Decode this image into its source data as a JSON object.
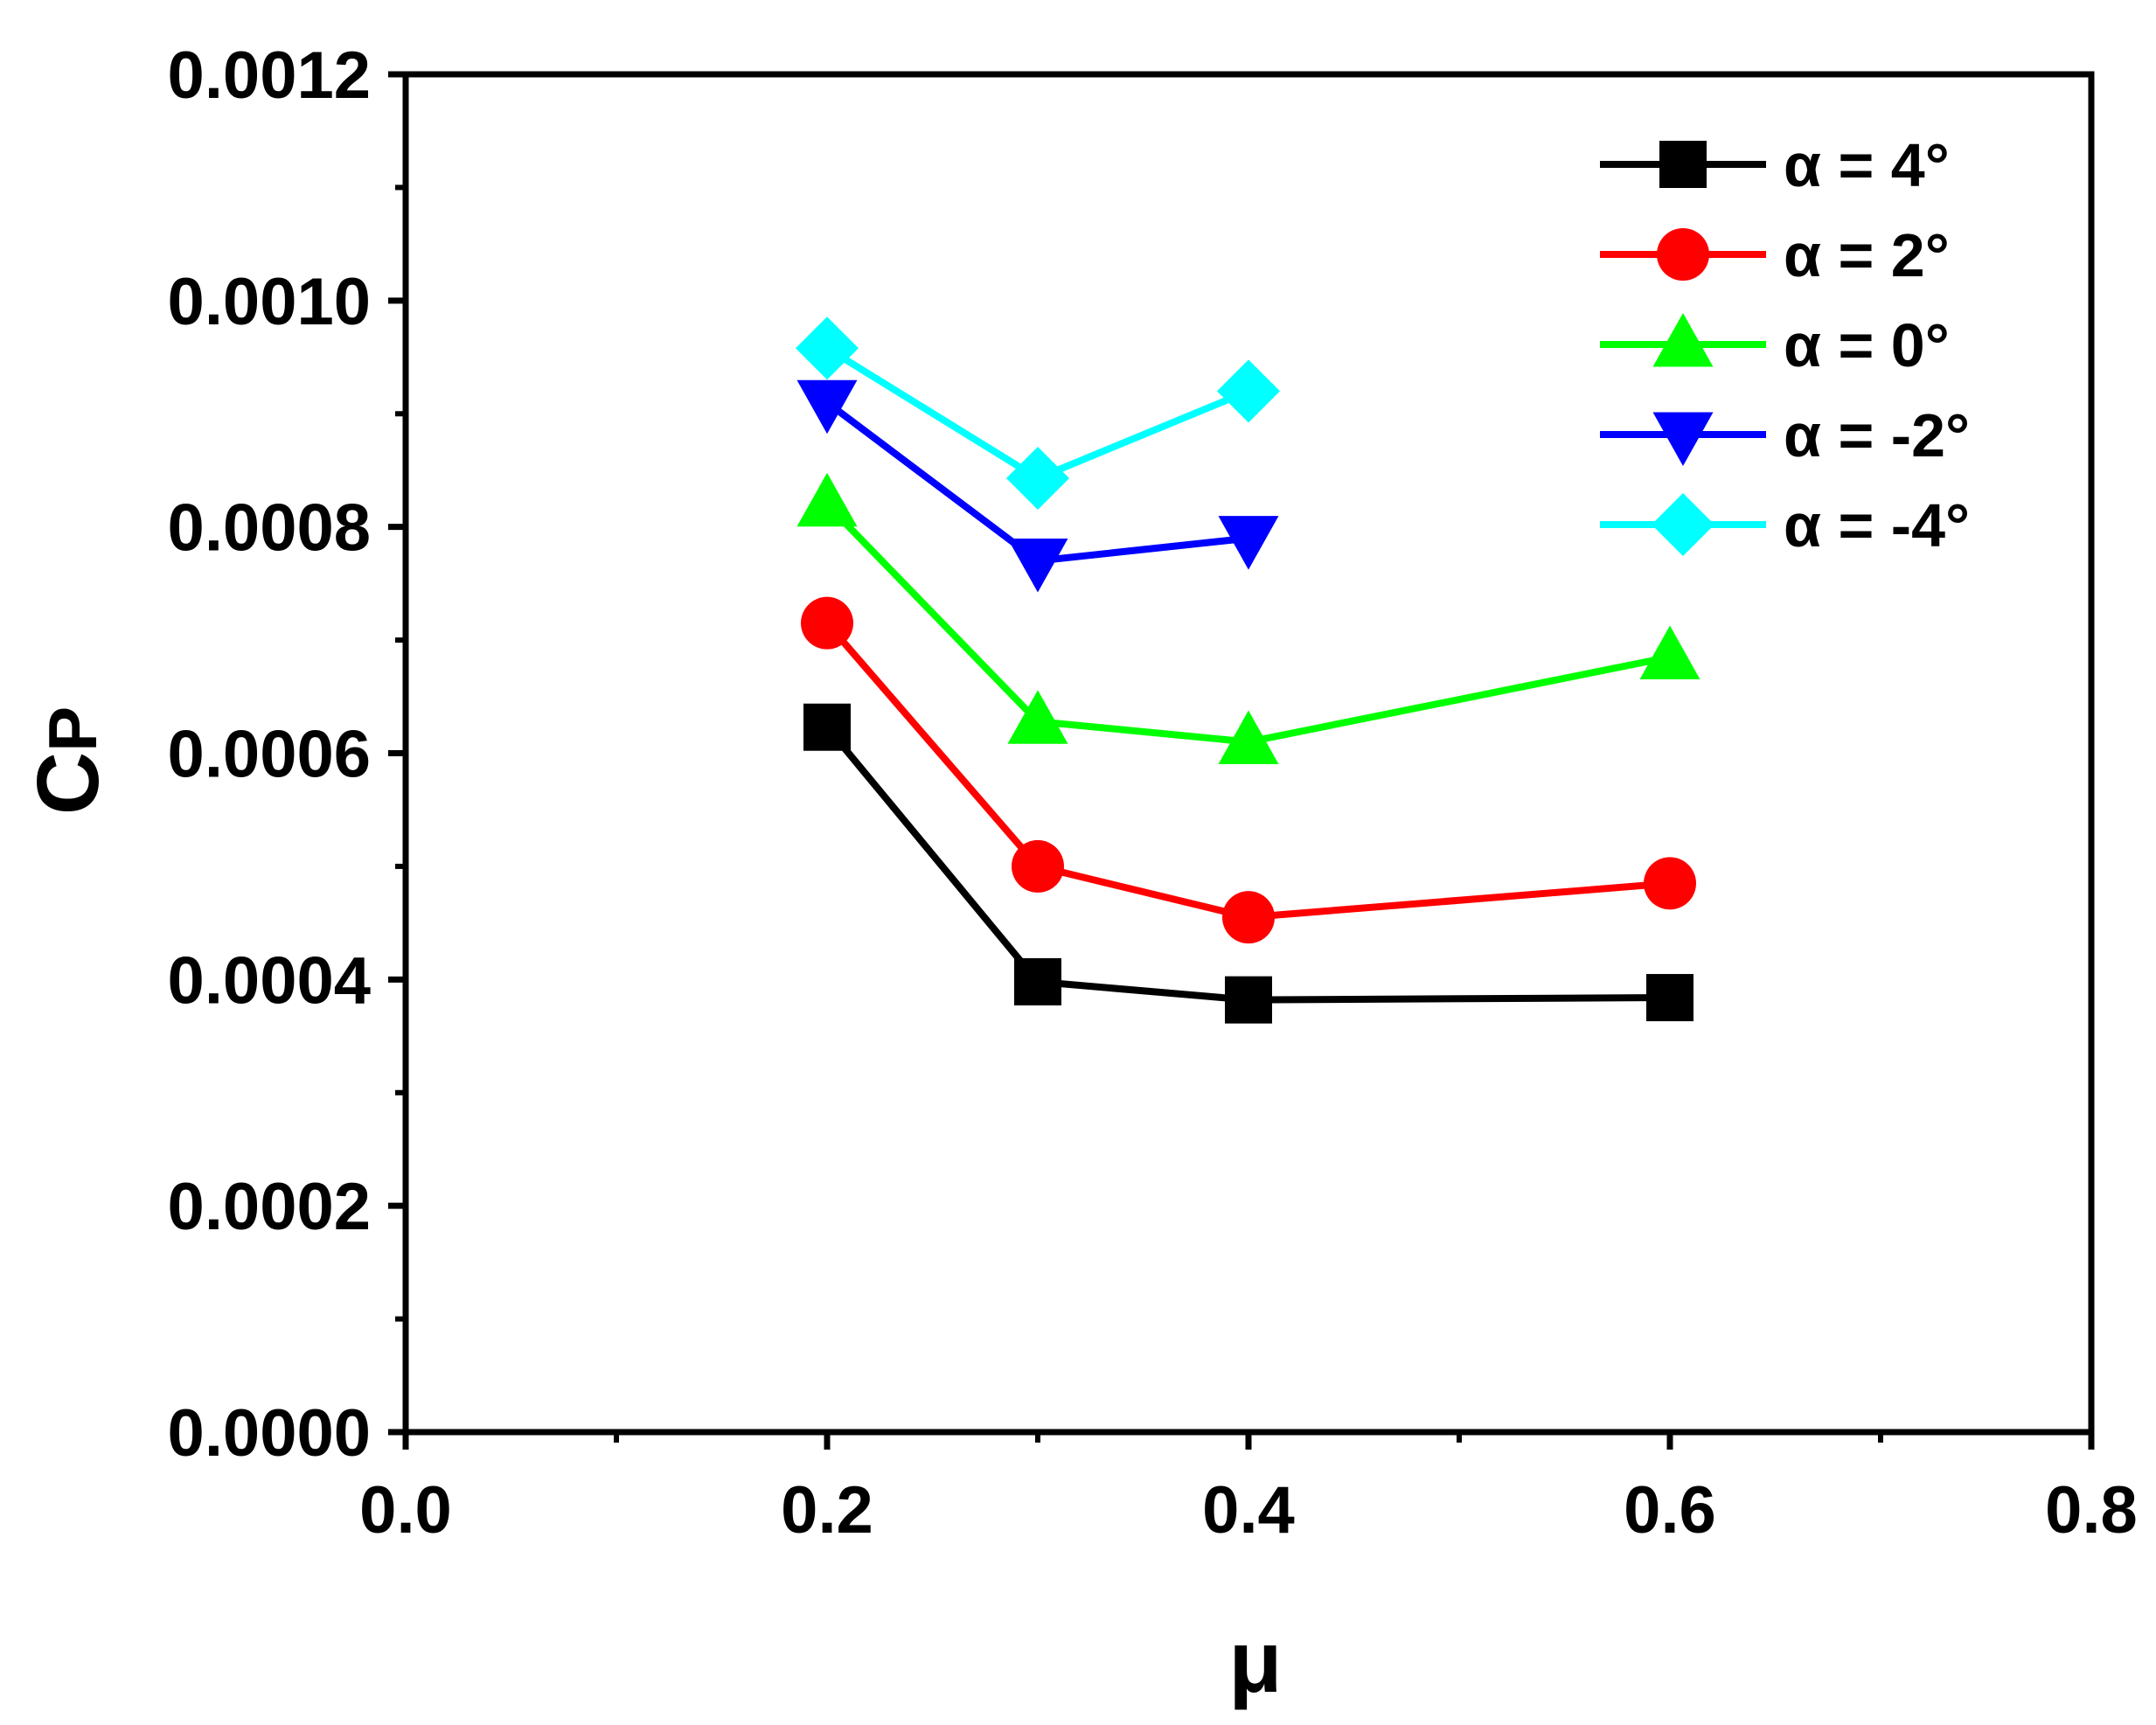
{
  "chart_data": {
    "type": "line",
    "xlabel": "μ",
    "ylabel_main": "C",
    "ylabel_sub": "P",
    "xlim": [
      0.0,
      0.8
    ],
    "ylim": [
      0.0,
      0.0012
    ],
    "xticks": [
      0.0,
      0.2,
      0.4,
      0.6,
      0.8
    ],
    "xtick_labels": [
      "0.0",
      "0.2",
      "0.4",
      "0.6",
      "0.8"
    ],
    "xminor": [
      0.1,
      0.3,
      0.5,
      0.7
    ],
    "yticks": [
      0,
      0.0002,
      0.0004,
      0.0006,
      0.0008,
      0.001,
      0.0012
    ],
    "ytick_labels": [
      "0.0000",
      "0.0002",
      "0.0004",
      "0.0006",
      "0.0008",
      "0.0010",
      "0.0012"
    ],
    "yminor": [
      0.0001,
      0.0003,
      0.0005,
      0.0007,
      0.0009,
      0.0011
    ],
    "grid": false,
    "legend_position": "top-right",
    "series": [
      {
        "name": "α = 4°",
        "color": "#000000",
        "marker": "square",
        "x": [
          0.2,
          0.3,
          0.4,
          0.6
        ],
        "y": [
          0.000623,
          0.000398,
          0.000382,
          0.000384
        ]
      },
      {
        "name": "α = 2°",
        "color": "#ff0000",
        "marker": "circle",
        "x": [
          0.2,
          0.3,
          0.4,
          0.6
        ],
        "y": [
          0.000715,
          0.0005,
          0.000455,
          0.000485
        ]
      },
      {
        "name": "α = 0°",
        "color": "#00ff00",
        "marker": "triangle-up",
        "x": [
          0.2,
          0.3,
          0.4,
          0.6
        ],
        "y": [
          0.00082,
          0.000628,
          0.00061,
          0.000685
        ]
      },
      {
        "name": "α = -2°",
        "color": "#0000ff",
        "marker": "triangle-down",
        "x": [
          0.2,
          0.3,
          0.4
        ],
        "y": [
          0.00091,
          0.00077,
          0.00079
        ]
      },
      {
        "name": "α = -4°",
        "color": "#00ffff",
        "marker": "diamond",
        "x": [
          0.2,
          0.3,
          0.4
        ],
        "y": [
          0.000958,
          0.000843,
          0.00092
        ]
      }
    ]
  }
}
